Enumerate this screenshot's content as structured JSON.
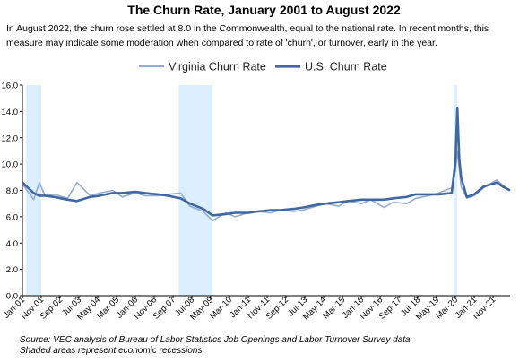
{
  "title": "The Churn Rate, January 2001 to August 2022",
  "subtitle": "In August 2022, the churn rose settled at 8.0 in the Commonwealth, equal to the national rate. In recent months, this measure may indicate some moderation when compared to rate of 'churn', or turnover, early in the year.",
  "source_line1": "Source: VEC analysis of Bureau of Labor Statistics Job Openings and Labor Turnover Survey data.",
  "source_line2": "Shaded areas represent economic recessions.",
  "colors": {
    "virginia": "#94abd4",
    "us": "#41689e",
    "recession": "#dcefff"
  },
  "chart_data": {
    "type": "line",
    "title": "The Churn Rate, January 2001 to August 2022",
    "x_range": [
      "2001-01",
      "2022-08"
    ],
    "ylim": [
      0,
      16
    ],
    "yticks": [
      "0.0",
      "2.0",
      "4.0",
      "6.0",
      "8.0",
      "10.0",
      "12.0",
      "14.0",
      "16.0"
    ],
    "grid": false,
    "legend_position": "top",
    "recessions": [
      {
        "start": "2001-03",
        "end": "2001-11"
      },
      {
        "start": "2007-12",
        "end": "2009-06"
      },
      {
        "start": "2020-02",
        "end": "2020-04"
      }
    ],
    "x_tick_labels": [
      "Jan-01",
      "Nov-01",
      "Sep-02",
      "Jul-03",
      "May-04",
      "Mar-05",
      "Jan-06",
      "Nov-06",
      "Sep-07",
      "Jul-08",
      "May-09",
      "Mar-10",
      "Jan-11",
      "Nov-11",
      "Sep-12",
      "Jul-13",
      "May-14",
      "Mar-15",
      "Jan-16",
      "Nov-16",
      "Sep-17",
      "Jul-18",
      "May-19",
      "Mar-20",
      "Jan-21",
      "Nov-21"
    ],
    "series": [
      {
        "name": "Virginia Churn Rate",
        "points": [
          [
            "2001-01",
            8.5
          ],
          [
            "2001-04",
            7.9
          ],
          [
            "2001-07",
            7.3
          ],
          [
            "2001-10",
            8.6
          ],
          [
            "2002-01",
            7.6
          ],
          [
            "2002-06",
            7.7
          ],
          [
            "2003-01",
            7.4
          ],
          [
            "2003-06",
            8.6
          ],
          [
            "2004-01",
            7.6
          ],
          [
            "2004-06",
            7.8
          ],
          [
            "2005-01",
            8.0
          ],
          [
            "2005-06",
            7.5
          ],
          [
            "2006-01",
            7.8
          ],
          [
            "2006-06",
            7.6
          ],
          [
            "2007-01",
            7.6
          ],
          [
            "2007-06",
            7.7
          ],
          [
            "2008-01",
            7.8
          ],
          [
            "2008-06",
            6.8
          ],
          [
            "2009-01",
            6.4
          ],
          [
            "2009-06",
            5.7
          ],
          [
            "2010-01",
            6.3
          ],
          [
            "2010-06",
            6.0
          ],
          [
            "2011-01",
            6.3
          ],
          [
            "2011-06",
            6.4
          ],
          [
            "2012-01",
            6.3
          ],
          [
            "2012-06",
            6.5
          ],
          [
            "2013-01",
            6.4
          ],
          [
            "2013-06",
            6.5
          ],
          [
            "2014-01",
            6.8
          ],
          [
            "2014-06",
            7.0
          ],
          [
            "2015-01",
            6.8
          ],
          [
            "2015-06",
            7.2
          ],
          [
            "2016-01",
            7.0
          ],
          [
            "2016-06",
            7.3
          ],
          [
            "2017-01",
            6.7
          ],
          [
            "2017-06",
            7.1
          ],
          [
            "2018-01",
            7.0
          ],
          [
            "2018-06",
            7.4
          ],
          [
            "2019-01",
            7.6
          ],
          [
            "2019-06",
            7.8
          ],
          [
            "2020-01",
            8.2
          ],
          [
            "2020-03",
            9.5
          ],
          [
            "2020-04",
            11.0
          ],
          [
            "2020-06",
            8.3
          ],
          [
            "2020-09",
            7.4
          ],
          [
            "2021-01",
            7.6
          ],
          [
            "2021-06",
            8.2
          ],
          [
            "2022-01",
            8.8
          ],
          [
            "2022-04",
            8.4
          ],
          [
            "2022-08",
            8.0
          ]
        ]
      },
      {
        "name": "U.S. Churn Rate",
        "points": [
          [
            "2001-01",
            8.6
          ],
          [
            "2001-04",
            8.2
          ],
          [
            "2001-07",
            7.8
          ],
          [
            "2001-10",
            7.6
          ],
          [
            "2002-01",
            7.6
          ],
          [
            "2002-06",
            7.5
          ],
          [
            "2003-01",
            7.3
          ],
          [
            "2003-06",
            7.2
          ],
          [
            "2004-01",
            7.5
          ],
          [
            "2004-06",
            7.6
          ],
          [
            "2005-01",
            7.8
          ],
          [
            "2005-06",
            7.8
          ],
          [
            "2006-01",
            7.9
          ],
          [
            "2006-06",
            7.8
          ],
          [
            "2007-01",
            7.7
          ],
          [
            "2007-06",
            7.6
          ],
          [
            "2008-01",
            7.4
          ],
          [
            "2008-06",
            7.0
          ],
          [
            "2009-01",
            6.6
          ],
          [
            "2009-06",
            6.1
          ],
          [
            "2010-01",
            6.2
          ],
          [
            "2010-06",
            6.3
          ],
          [
            "2011-01",
            6.3
          ],
          [
            "2011-06",
            6.4
          ],
          [
            "2012-01",
            6.5
          ],
          [
            "2012-06",
            6.5
          ],
          [
            "2013-01",
            6.6
          ],
          [
            "2013-06",
            6.7
          ],
          [
            "2014-01",
            6.9
          ],
          [
            "2014-06",
            7.0
          ],
          [
            "2015-01",
            7.1
          ],
          [
            "2015-06",
            7.2
          ],
          [
            "2016-01",
            7.3
          ],
          [
            "2016-06",
            7.3
          ],
          [
            "2017-01",
            7.3
          ],
          [
            "2017-06",
            7.4
          ],
          [
            "2018-01",
            7.5
          ],
          [
            "2018-06",
            7.7
          ],
          [
            "2019-01",
            7.7
          ],
          [
            "2019-06",
            7.7
          ],
          [
            "2020-01",
            7.8
          ],
          [
            "2020-03",
            10.2
          ],
          [
            "2020-04",
            14.3
          ],
          [
            "2020-05",
            10.4
          ],
          [
            "2020-06",
            9.0
          ],
          [
            "2020-09",
            7.5
          ],
          [
            "2021-01",
            7.7
          ],
          [
            "2021-06",
            8.3
          ],
          [
            "2022-01",
            8.6
          ],
          [
            "2022-04",
            8.3
          ],
          [
            "2022-08",
            8.0
          ]
        ]
      }
    ]
  }
}
